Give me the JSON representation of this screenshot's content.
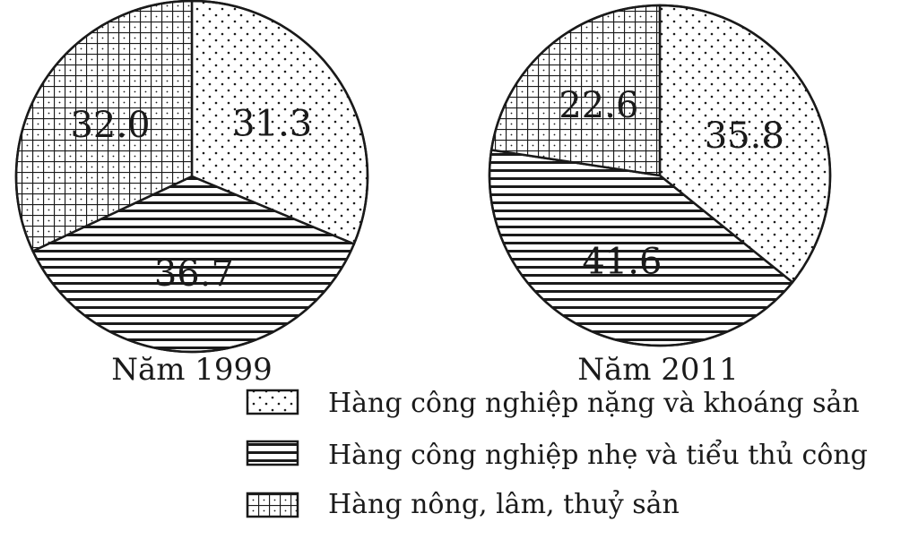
{
  "chart_data": [
    {
      "type": "pie",
      "title": "Năm 1999",
      "unit": "",
      "slices": [
        {
          "label": "Hàng công nghiệp nặng và khoáng sản",
          "value": 31.3,
          "pattern": "dots"
        },
        {
          "label": "Hàng công nghiệp nhẹ và tiểu thủ công",
          "value": 36.7,
          "pattern": "hlines"
        },
        {
          "label": "Hàng nông, lâm, thuỷ sản",
          "value": 32.0,
          "pattern": "grid"
        }
      ]
    },
    {
      "type": "pie",
      "title": "Năm 2011",
      "unit": "",
      "slices": [
        {
          "label": "Hàng công nghiệp nặng và khoáng sản",
          "value": 35.8,
          "pattern": "dots"
        },
        {
          "label": "Hàng công nghiệp nhẹ và tiểu thủ công",
          "value": 41.6,
          "pattern": "hlines"
        },
        {
          "label": "Hàng nông, lâm, thuỷ sản",
          "value": 22.6,
          "pattern": "grid"
        }
      ]
    }
  ],
  "legend": [
    {
      "label": "Hàng công nghiệp nặng và khoáng sản",
      "pattern": "dots"
    },
    {
      "label": "Hàng công nghiệp nhẹ và tiểu thủ công",
      "pattern": "hlines"
    },
    {
      "label": "Hàng nông, lâm, thuỷ sản",
      "pattern": "grid"
    }
  ],
  "colors": {
    "ink": "#1a1a1a",
    "background": "#ffffff"
  }
}
